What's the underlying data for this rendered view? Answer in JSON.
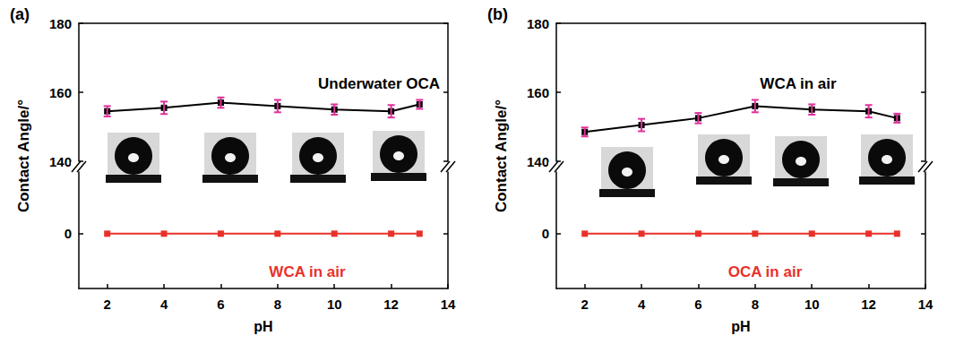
{
  "chart_data": [
    {
      "type": "line",
      "title": "(a)",
      "x_label": "pH",
      "y_label": "Contact Angle/°",
      "x": [
        2,
        4,
        6,
        8,
        10,
        12,
        13
      ],
      "xlim": [
        1,
        14
      ],
      "xticks": [
        2,
        4,
        6,
        8,
        10,
        12,
        14
      ],
      "ylim": [
        140,
        180
      ],
      "yticks": [
        140,
        160,
        180
      ],
      "y2lim": [
        -16,
        18
      ],
      "y2ticks": [
        0
      ],
      "marker": "square",
      "series": [
        {
          "name": "Underwater OCA",
          "color": "#000000",
          "values": [
            154.5,
            155.5,
            157,
            156,
            155,
            154.5,
            156.5
          ],
          "errors": [
            1.5,
            1.8,
            1.5,
            1.8,
            1.5,
            1.8,
            1.3
          ]
        },
        {
          "name": "WCA in air",
          "color": "#e8312a",
          "axis": "y2",
          "values": [
            0,
            0,
            0,
            0,
            0,
            0,
            0
          ]
        }
      ]
    },
    {
      "type": "line",
      "title": "(b)",
      "x_label": "pH",
      "y_label": "Contact Angle/°",
      "x": [
        2,
        4,
        6,
        8,
        10,
        12,
        13
      ],
      "xlim": [
        1,
        14
      ],
      "xticks": [
        2,
        4,
        6,
        8,
        10,
        12,
        14
      ],
      "ylim": [
        140,
        180
      ],
      "yticks": [
        140,
        160,
        180
      ],
      "y2lim": [
        -16,
        18
      ],
      "y2ticks": [
        0
      ],
      "marker": "square",
      "series": [
        {
          "name": "WCA in air",
          "color": "#000000",
          "values": [
            148.5,
            150.5,
            152.5,
            156,
            155,
            154.5,
            152.5
          ],
          "errors": [
            1.3,
            1.8,
            1.5,
            1.8,
            1.5,
            1.8,
            1.3
          ]
        },
        {
          "name": "OCA in air",
          "color": "#e8312a",
          "axis": "y2",
          "values": [
            0,
            0,
            0,
            0,
            0,
            0,
            0
          ]
        }
      ]
    }
  ]
}
